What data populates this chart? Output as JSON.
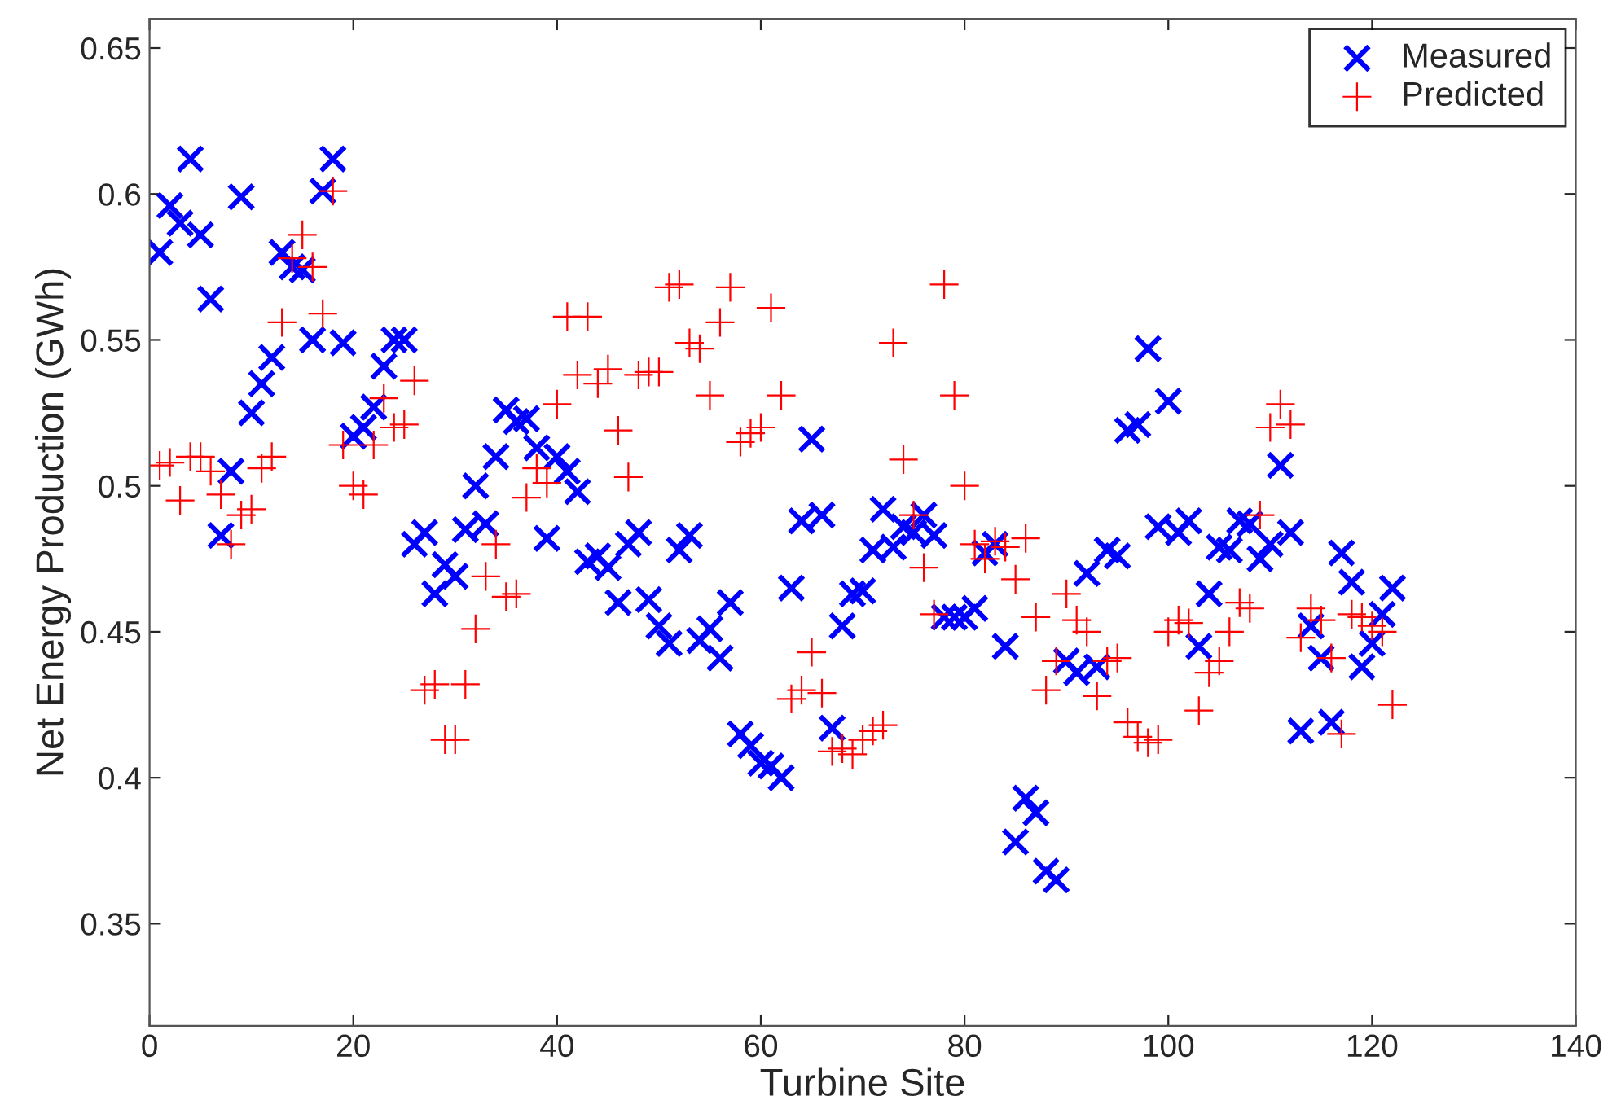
{
  "chart_data": {
    "type": "scatter",
    "xlabel": "Turbine Site",
    "ylabel": "Net Energy Production (GWh)",
    "x": [
      1,
      2,
      3,
      4,
      5,
      6,
      7,
      8,
      9,
      10,
      11,
      12,
      13,
      14,
      15,
      16,
      17,
      18,
      19,
      20,
      21,
      22,
      23,
      24,
      25,
      26,
      27,
      28,
      29,
      30,
      31,
      32,
      33,
      34,
      35,
      36,
      37,
      38,
      39,
      40,
      41,
      42,
      43,
      44,
      45,
      46,
      47,
      48,
      49,
      50,
      51,
      52,
      53,
      54,
      55,
      56,
      57,
      58,
      59,
      60,
      61,
      62,
      63,
      64,
      65,
      66,
      67,
      68,
      69,
      70,
      71,
      72,
      73,
      74,
      75,
      76,
      77,
      78,
      79,
      80,
      81,
      82,
      83,
      84,
      85,
      86,
      87,
      88,
      89,
      90,
      91,
      92,
      93,
      94,
      95,
      96,
      97,
      98,
      99,
      100,
      101,
      102,
      103,
      104,
      105,
      106,
      107,
      108,
      109,
      110,
      111,
      112,
      113,
      114,
      115,
      116,
      117,
      118,
      119,
      120,
      121,
      122
    ],
    "series": [
      {
        "name": "Measured",
        "color": "#0000ff",
        "marker": "x",
        "values": [
          0.58,
          0.596,
          0.59,
          0.612,
          0.586,
          0.564,
          0.483,
          0.505,
          0.599,
          0.525,
          0.535,
          0.544,
          0.58,
          0.575,
          0.574,
          0.55,
          0.601,
          0.612,
          0.549,
          0.517,
          0.52,
          0.527,
          0.541,
          0.55,
          0.55,
          0.48,
          0.484,
          0.463,
          0.473,
          0.469,
          0.485,
          0.5,
          0.487,
          0.51,
          0.526,
          0.522,
          0.523,
          0.513,
          0.482,
          0.51,
          0.505,
          0.498,
          0.474,
          0.476,
          0.472,
          0.46,
          0.48,
          0.484,
          0.461,
          0.452,
          0.446,
          0.478,
          0.483,
          0.447,
          0.451,
          0.441,
          0.46,
          0.415,
          0.411,
          0.405,
          0.404,
          0.4,
          0.465,
          0.488,
          0.516,
          0.49,
          0.417,
          0.452,
          0.463,
          0.464,
          0.478,
          0.492,
          0.479,
          0.486,
          0.484,
          0.49,
          0.483,
          0.455,
          0.455,
          0.455,
          0.458,
          0.477,
          0.48,
          0.445,
          0.378,
          0.393,
          0.388,
          0.368,
          0.365,
          0.44,
          0.436,
          0.47,
          0.438,
          0.478,
          0.476,
          0.519,
          0.521,
          0.547,
          0.486,
          0.529,
          0.484,
          0.488,
          0.445,
          0.463,
          0.479,
          0.478,
          0.488,
          0.487,
          0.475,
          0.48,
          0.507,
          0.484,
          0.416,
          0.452,
          0.441,
          0.419,
          0.477,
          0.467,
          0.438,
          0.446,
          0.456,
          0.465
        ]
      },
      {
        "name": "Predicted",
        "color": "#ff0000",
        "marker": "cross",
        "values": [
          0.507,
          0.508,
          0.495,
          0.51,
          0.51,
          0.505,
          0.497,
          0.48,
          0.49,
          0.492,
          0.506,
          0.51,
          0.556,
          0.578,
          0.586,
          0.575,
          0.559,
          0.601,
          0.514,
          0.5,
          0.497,
          0.514,
          0.53,
          0.52,
          0.521,
          0.536,
          0.43,
          0.432,
          0.413,
          0.413,
          0.432,
          0.451,
          0.469,
          0.48,
          0.462,
          0.463,
          0.496,
          0.506,
          0.501,
          0.528,
          0.558,
          0.538,
          0.558,
          0.535,
          0.54,
          0.519,
          0.503,
          0.538,
          0.539,
          0.539,
          0.568,
          0.569,
          0.549,
          0.547,
          0.531,
          0.556,
          0.568,
          0.515,
          0.518,
          0.52,
          0.561,
          0.531,
          0.427,
          0.43,
          0.443,
          0.429,
          0.409,
          0.41,
          0.408,
          0.413,
          0.416,
          0.418,
          0.549,
          0.509,
          0.49,
          0.472,
          0.456,
          0.569,
          0.531,
          0.5,
          0.48,
          0.475,
          0.481,
          0.479,
          0.468,
          0.482,
          0.455,
          0.43,
          0.44,
          0.463,
          0.454,
          0.45,
          0.428,
          0.44,
          0.441,
          0.419,
          0.414,
          0.412,
          0.413,
          0.45,
          0.454,
          0.453,
          0.423,
          0.436,
          0.44,
          0.45,
          0.46,
          0.458,
          0.49,
          0.52,
          0.528,
          0.521,
          0.448,
          0.458,
          0.454,
          0.441,
          0.415,
          0.456,
          0.455,
          0.452,
          0.45,
          0.425
        ]
      }
    ],
    "xlim": [
      0,
      140
    ],
    "xticks": [
      0,
      20,
      40,
      60,
      80,
      100,
      120,
      140
    ],
    "ylim": [
      0.315,
      0.66
    ],
    "yticks": [
      0.35,
      0.4,
      0.45,
      0.5,
      0.55,
      0.6,
      0.65
    ],
    "grid": false,
    "legend": "top right"
  }
}
